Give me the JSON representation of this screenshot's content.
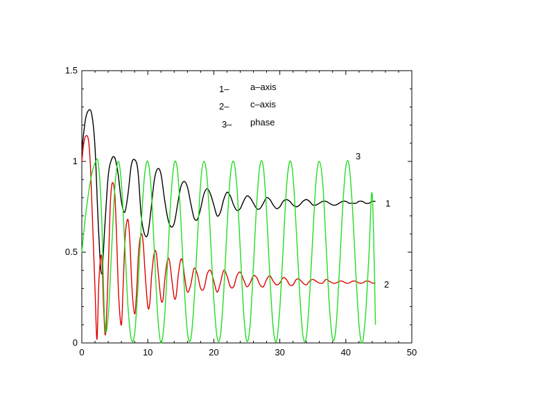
{
  "chart_data": {
    "type": "line",
    "title": "",
    "xlabel": "",
    "ylabel": "",
    "xlim": [
      0,
      50
    ],
    "ylim": [
      0,
      1.5
    ],
    "x_ticks": [
      "0",
      "10",
      "20",
      "30",
      "40",
      "50"
    ],
    "y_ticks": [
      "0",
      "0.5",
      "1",
      "1.5"
    ],
    "grid": false,
    "legend": {
      "placement": "top-center",
      "entries": [
        {
          "number": "1–",
          "text": "a–axis"
        },
        {
          "number": "2–",
          "text": "c–axis"
        },
        {
          "number": "3–",
          "text": "phase"
        }
      ]
    },
    "series": [
      {
        "name": "a–axis",
        "label": "1",
        "color": "#000000",
        "x": [
          0.0,
          0.5,
          1.0,
          1.5,
          2.0,
          2.5,
          3.0,
          3.5,
          4.0,
          4.5,
          5.0,
          5.5,
          6.0,
          6.5,
          7.0,
          7.5,
          8.0,
          8.5,
          9.0,
          9.5,
          10.0,
          10.5,
          11.0,
          11.5,
          12.0,
          12.5,
          13.0,
          13.5,
          14.0,
          14.5,
          15.0,
          15.5,
          16.0,
          16.5,
          17.0,
          17.5,
          18.0,
          18.5,
          19.0,
          19.5,
          20.0,
          20.5,
          21.0,
          21.5,
          22.0,
          22.5,
          23.0,
          23.5,
          24.0,
          24.5,
          25.0,
          25.5,
          26.0,
          26.5,
          27.0,
          27.5,
          28.0,
          28.5,
          29.0,
          29.5,
          30.0,
          30.5,
          31.0,
          31.5,
          32.0,
          32.5,
          33.0,
          33.5,
          34.0,
          34.5,
          35.0,
          35.5,
          36.0,
          36.5,
          37.0,
          37.5,
          38.0,
          38.5,
          39.0,
          39.5,
          40.0,
          40.5,
          41.0,
          41.5,
          42.0,
          42.5,
          43.0,
          43.5,
          44.0,
          44.5
        ],
        "y": [
          1.06,
          1.22,
          1.28,
          1.26,
          1.08,
          0.65,
          0.38,
          0.65,
          0.92,
          1.01,
          1.02,
          0.93,
          0.78,
          0.72,
          0.82,
          0.98,
          1.01,
          0.95,
          0.7,
          0.6,
          0.6,
          0.74,
          0.9,
          0.96,
          0.93,
          0.8,
          0.69,
          0.64,
          0.66,
          0.76,
          0.86,
          0.89,
          0.86,
          0.77,
          0.69,
          0.68,
          0.74,
          0.82,
          0.85,
          0.82,
          0.76,
          0.7,
          0.72,
          0.79,
          0.83,
          0.81,
          0.76,
          0.73,
          0.74,
          0.78,
          0.81,
          0.8,
          0.77,
          0.74,
          0.74,
          0.77,
          0.8,
          0.79,
          0.76,
          0.74,
          0.75,
          0.78,
          0.79,
          0.78,
          0.76,
          0.75,
          0.76,
          0.78,
          0.79,
          0.78,
          0.76,
          0.76,
          0.77,
          0.78,
          0.78,
          0.77,
          0.76,
          0.76,
          0.77,
          0.78,
          0.78,
          0.77,
          0.77,
          0.77,
          0.78,
          0.78,
          0.77,
          0.77,
          0.78,
          0.78
        ]
      },
      {
        "name": "c–axis",
        "label": "2",
        "color": "#e00000",
        "x": [
          0.0,
          0.3,
          0.6,
          1.0,
          1.3,
          1.6,
          2.0,
          2.3,
          2.6,
          3.0,
          3.3,
          3.6,
          4.0,
          4.3,
          4.6,
          5.0,
          5.3,
          5.6,
          6.0,
          6.3,
          6.6,
          7.0,
          7.3,
          7.6,
          8.0,
          8.3,
          8.6,
          9.0,
          9.3,
          9.6,
          10.0,
          10.3,
          10.6,
          11.0,
          11.3,
          11.6,
          12.0,
          12.3,
          12.6,
          13.0,
          13.3,
          13.6,
          14.0,
          14.3,
          14.6,
          15.0,
          15.3,
          15.6,
          16.0,
          16.5,
          17.0,
          17.5,
          18.0,
          18.5,
          19.0,
          19.5,
          20.0,
          20.5,
          21.0,
          21.5,
          22.0,
          22.5,
          23.0,
          23.5,
          24.0,
          24.5,
          25.0,
          25.5,
          26.0,
          26.5,
          27.0,
          27.5,
          28.0,
          28.5,
          29.0,
          29.5,
          30.0,
          30.5,
          31.0,
          31.5,
          32.0,
          32.5,
          33.0,
          33.5,
          34.0,
          34.5,
          35.0,
          35.5,
          36.0,
          36.5,
          37.0,
          37.5,
          38.0,
          38.5,
          39.0,
          39.5,
          40.0,
          40.5,
          41.0,
          41.5,
          42.0,
          42.5,
          43.0,
          43.5,
          44.0,
          44.5
        ],
        "y": [
          1.0,
          1.1,
          1.14,
          1.12,
          0.98,
          0.7,
          0.3,
          0.02,
          0.35,
          0.48,
          0.2,
          0.05,
          0.4,
          0.75,
          0.88,
          0.82,
          0.55,
          0.25,
          0.1,
          0.35,
          0.6,
          0.68,
          0.55,
          0.3,
          0.16,
          0.28,
          0.5,
          0.6,
          0.55,
          0.38,
          0.2,
          0.22,
          0.38,
          0.5,
          0.49,
          0.38,
          0.24,
          0.24,
          0.36,
          0.46,
          0.45,
          0.36,
          0.25,
          0.26,
          0.37,
          0.46,
          0.44,
          0.36,
          0.28,
          0.32,
          0.41,
          0.38,
          0.3,
          0.3,
          0.38,
          0.4,
          0.34,
          0.28,
          0.33,
          0.4,
          0.37,
          0.31,
          0.31,
          0.37,
          0.39,
          0.35,
          0.31,
          0.33,
          0.37,
          0.36,
          0.32,
          0.31,
          0.35,
          0.37,
          0.34,
          0.32,
          0.33,
          0.36,
          0.35,
          0.32,
          0.32,
          0.35,
          0.35,
          0.33,
          0.32,
          0.34,
          0.35,
          0.34,
          0.33,
          0.33,
          0.35,
          0.34,
          0.33,
          0.33,
          0.34,
          0.34,
          0.33,
          0.33,
          0.34,
          0.34,
          0.33,
          0.33,
          0.34,
          0.34,
          0.33,
          0.33
        ]
      },
      {
        "name": "phase",
        "label": "3",
        "color": "#22dd22",
        "x": [
          0.0,
          0.5,
          1.0,
          1.5,
          2.0,
          2.5,
          3.0,
          3.5,
          4.0,
          4.5,
          5.0,
          5.5,
          6.0,
          6.5,
          7.0,
          7.5,
          8.0,
          8.5,
          9.0,
          9.5,
          10.0,
          10.5,
          11.0,
          11.5,
          12.0,
          12.5,
          13.0,
          13.5,
          14.0,
          14.5,
          15.0,
          15.5,
          16.0,
          16.5,
          17.0,
          17.5,
          18.0,
          18.5,
          19.0,
          19.5,
          20.0,
          20.5,
          21.0,
          21.5,
          22.0,
          22.5,
          23.0,
          23.5,
          24.0,
          24.5,
          25.0,
          25.5,
          26.0,
          26.5,
          27.0,
          27.5,
          28.0,
          28.5,
          29.0,
          29.5,
          30.0,
          30.5,
          31.0,
          31.5,
          32.0,
          32.5,
          33.0,
          33.5,
          34.0,
          34.5,
          35.0,
          35.5,
          36.0,
          36.5,
          37.0,
          37.5,
          38.0,
          38.5,
          39.0,
          39.5,
          40.0,
          40.5,
          41.0,
          41.5,
          42.0,
          42.5,
          43.0,
          43.5,
          44.0,
          44.5
        ],
        "y": [
          0.5,
          0.68,
          0.82,
          0.93,
          0.99,
          0.99,
          0.7,
          0.1,
          0.15,
          0.5,
          0.85,
          1.0,
          0.88,
          0.55,
          0.2,
          0.02,
          0.05,
          0.3,
          0.65,
          0.92,
          1.0,
          0.85,
          0.5,
          0.15,
          0.0,
          0.12,
          0.45,
          0.8,
          0.99,
          0.95,
          0.68,
          0.32,
          0.06,
          0.02,
          0.22,
          0.56,
          0.88,
          1.0,
          0.9,
          0.58,
          0.24,
          0.03,
          0.04,
          0.28,
          0.63,
          0.92,
          1.0,
          0.86,
          0.52,
          0.18,
          0.01,
          0.1,
          0.42,
          0.77,
          0.98,
          0.97,
          0.72,
          0.36,
          0.08,
          0.01,
          0.19,
          0.52,
          0.85,
          1.0,
          0.92,
          0.62,
          0.28,
          0.04,
          0.03,
          0.25,
          0.59,
          0.9,
          1.0,
          0.88,
          0.55,
          0.21,
          0.02,
          0.08,
          0.38,
          0.73,
          0.97,
          0.98,
          0.75,
          0.4,
          0.1,
          0.0,
          0.16,
          0.48,
          0.82,
          0.1
        ]
      }
    ]
  }
}
